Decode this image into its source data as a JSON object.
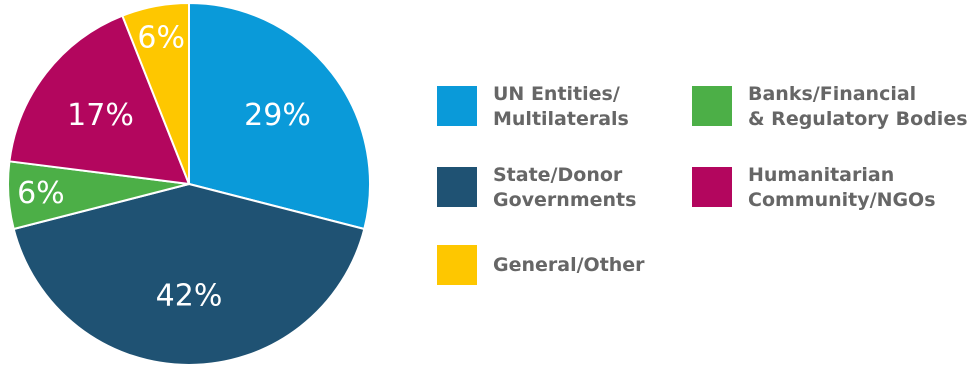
{
  "chart_data": {
    "type": "pie",
    "start": "12 o'clock",
    "direction": "clockwise",
    "slices": [
      {
        "key": "un",
        "label_lines": [
          "UN Entities/",
          "Multilaterals"
        ],
        "value": 29,
        "value_label": "29%",
        "color": "#0a9ad9"
      },
      {
        "key": "state",
        "label_lines": [
          "State/Donor",
          "Governments"
        ],
        "value": 42,
        "value_label": "42%",
        "color": "#1f5273"
      },
      {
        "key": "banks",
        "label_lines": [
          "Banks/Financial",
          "& Regulatory Bodies"
        ],
        "value": 6,
        "value_label": "6%",
        "color": "#4caf47"
      },
      {
        "key": "humanitarian",
        "label_lines": [
          "Humanitarian",
          "Community/NGOs"
        ],
        "value": 17,
        "value_label": "17%",
        "color": "#b3065e"
      },
      {
        "key": "general",
        "label_lines": [
          "General/Other"
        ],
        "value": 6,
        "value_label": "6%",
        "color": "#fec700"
      }
    ]
  }
}
